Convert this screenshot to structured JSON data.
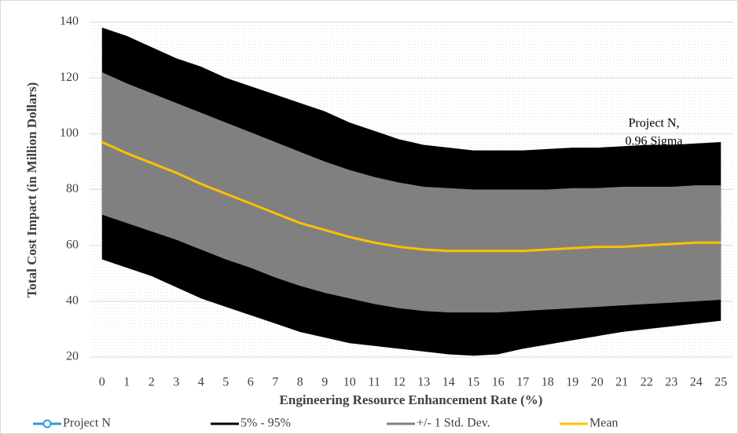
{
  "chart_data": {
    "type": "band",
    "x_label": "Engineering Resource Enhancement Rate (%)",
    "y_label": "Total Cost Impact (in Million Dollars)",
    "x": [
      0,
      1,
      2,
      3,
      4,
      5,
      6,
      7,
      8,
      9,
      10,
      11,
      12,
      13,
      14,
      15,
      16,
      17,
      18,
      19,
      20,
      21,
      22,
      23,
      24,
      25
    ],
    "xlim": [
      -0.5,
      25.5
    ],
    "xticks": [
      0,
      1,
      2,
      3,
      4,
      5,
      6,
      7,
      8,
      9,
      10,
      11,
      12,
      13,
      14,
      15,
      16,
      17,
      18,
      19,
      20,
      21,
      22,
      23,
      24,
      25
    ],
    "ylim": [
      20,
      140
    ],
    "yticks": [
      20,
      40,
      60,
      80,
      100,
      120,
      140
    ],
    "grid": true,
    "legend": "bottom",
    "annotation": [
      "Project N,",
      "0.96 Sigma"
    ],
    "series": [
      {
        "name": "Project N",
        "color": "#2e9ad6",
        "style": "marker"
      },
      {
        "name": "5% - 95%",
        "color": "#000000",
        "style": "band",
        "upper": [
          138,
          135,
          131,
          127,
          124,
          120,
          117,
          114,
          111,
          108,
          104,
          101,
          98,
          96,
          95,
          94,
          94,
          94,
          94.5,
          95,
          95,
          95.5,
          96,
          96,
          96.5,
          97
        ],
        "lower": [
          55,
          52,
          49,
          45,
          41,
          38,
          35,
          32,
          29,
          27,
          25,
          24,
          23,
          22,
          21,
          20.5,
          21,
          23,
          24.5,
          26,
          27.5,
          29,
          30,
          31,
          32,
          33
        ]
      },
      {
        "name": "+/- 1 Std. Dev.",
        "color": "#808080",
        "style": "band",
        "upper": [
          122,
          118,
          114.5,
          111,
          107.5,
          104,
          100.5,
          97,
          93.5,
          90,
          87,
          84.5,
          82.5,
          81,
          80.5,
          80,
          80,
          80,
          80,
          80.5,
          80.5,
          81,
          81,
          81,
          81.5,
          81.5
        ],
        "lower": [
          71,
          68,
          65,
          62,
          58.5,
          55,
          52,
          48.5,
          45.5,
          43,
          41,
          39,
          37.5,
          36.5,
          36,
          36,
          36,
          36.5,
          37,
          37.5,
          38,
          38.5,
          39,
          39.5,
          40,
          40.5
        ]
      },
      {
        "name": "Mean",
        "color": "#ffc000",
        "style": "line",
        "values": [
          97,
          93,
          89.5,
          86,
          82,
          78.5,
          75,
          71.5,
          68,
          65.5,
          63,
          61,
          59.5,
          58.5,
          58,
          58,
          58,
          58,
          58.5,
          59,
          59.5,
          59.5,
          60,
          60.5,
          61,
          61
        ]
      }
    ]
  }
}
